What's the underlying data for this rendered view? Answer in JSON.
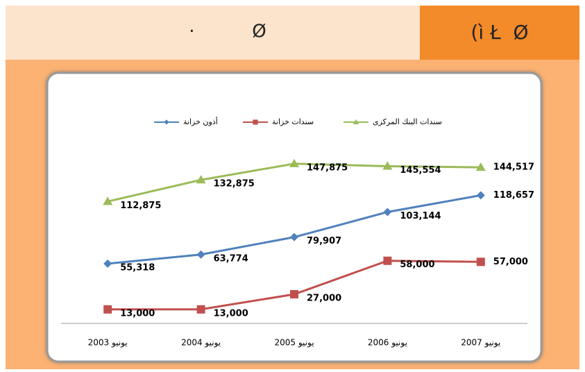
{
  "header": {
    "title": "(ì Ł  Ø",
    "subtitle": "·          Ø"
  },
  "chart_data": {
    "type": "line",
    "categories": [
      "يونيو 2003",
      "يونيو 2004",
      "يونيو 2005",
      "يونيو 2006",
      "يونيو 2007"
    ],
    "series": [
      {
        "name": "أذون خزانة",
        "color": "#4f81bd",
        "marker": "diamond",
        "values": [
          55318,
          63774,
          79907,
          103144,
          118657
        ],
        "value_labels": [
          "55,318",
          "63,774",
          "79,907",
          "103,144",
          "118,657"
        ]
      },
      {
        "name": "سندات خزانة",
        "color": "#c0504d",
        "marker": "square",
        "values": [
          13000,
          13000,
          27000,
          58000,
          57000
        ],
        "value_labels": [
          "13,000",
          "13,000",
          "27,000",
          "58,000",
          "57,000"
        ]
      },
      {
        "name": "سندات البنك المركزى",
        "color": "#9bbb59",
        "marker": "triangle",
        "values": [
          112875,
          132875,
          147875,
          145554,
          144517
        ],
        "value_labels": [
          "112,875",
          "132,875",
          "147,875",
          "145,554",
          "144,517"
        ]
      }
    ],
    "ylim": [
      0,
      160000
    ],
    "legend": "top"
  }
}
